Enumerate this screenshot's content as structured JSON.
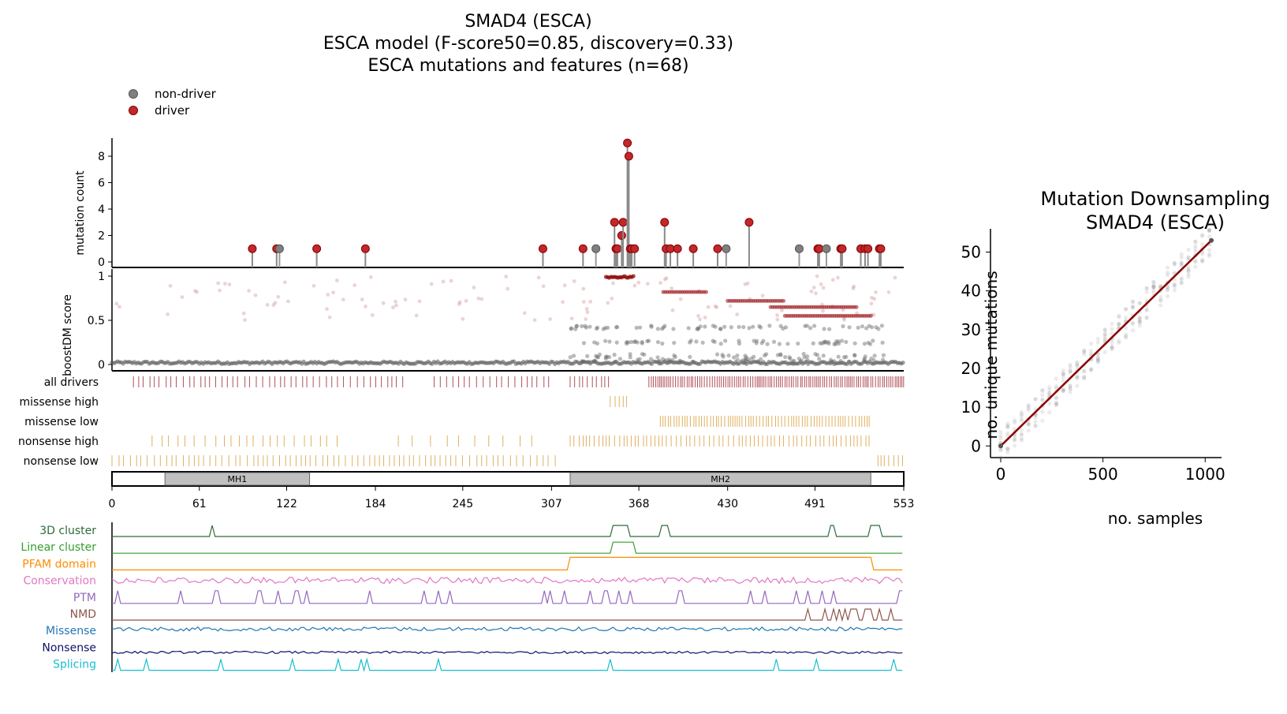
{
  "chart_data": [
    {
      "type": "scatter",
      "title": [
        "SMAD4 (ESCA)",
        "ESCA model (F-score50=0.85, discovery=0.33)",
        "ESCA mutations and features (n=68)"
      ],
      "legend": {
        "position": "top-left",
        "entries": [
          {
            "name": "non-driver",
            "color": "#808080"
          },
          {
            "name": "driver",
            "color": "#c0282c"
          }
        ]
      },
      "x_range": [
        0,
        553
      ],
      "x_ticks": [
        "0",
        "61",
        "122",
        "184",
        "245",
        "307",
        "368",
        "430",
        "491",
        "553"
      ],
      "x_tick_values": [
        0,
        61,
        122,
        184,
        245,
        307,
        368,
        430,
        491,
        553
      ],
      "mutation_count": {
        "ylabel": "mutation count",
        "ylim": [
          0,
          9.5
        ],
        "y_ticks": [
          0,
          2,
          4,
          6,
          8
        ],
        "grid": false,
        "lollipops": [
          {
            "pos": 98,
            "count": 1,
            "driver": true
          },
          {
            "pos": 115,
            "count": 1,
            "driver": true
          },
          {
            "pos": 117,
            "count": 1,
            "driver": false
          },
          {
            "pos": 143,
            "count": 1,
            "driver": true
          },
          {
            "pos": 177,
            "count": 1,
            "driver": true
          },
          {
            "pos": 301,
            "count": 1,
            "driver": true
          },
          {
            "pos": 329,
            "count": 1,
            "driver": true
          },
          {
            "pos": 338,
            "count": 1,
            "driver": false
          },
          {
            "pos": 351,
            "count": 3,
            "driver": true
          },
          {
            "pos": 352,
            "count": 1,
            "driver": true
          },
          {
            "pos": 353,
            "count": 1,
            "driver": true
          },
          {
            "pos": 356,
            "count": 2,
            "driver": true
          },
          {
            "pos": 357,
            "count": 3,
            "driver": true
          },
          {
            "pos": 360,
            "count": 9,
            "driver": true
          },
          {
            "pos": 361,
            "count": 8,
            "driver": true
          },
          {
            "pos": 362,
            "count": 1,
            "driver": true
          },
          {
            "pos": 363,
            "count": 1,
            "driver": true
          },
          {
            "pos": 365,
            "count": 1,
            "driver": true
          },
          {
            "pos": 386,
            "count": 3,
            "driver": true
          },
          {
            "pos": 387,
            "count": 1,
            "driver": true
          },
          {
            "pos": 390,
            "count": 1,
            "driver": true
          },
          {
            "pos": 395,
            "count": 1,
            "driver": true
          },
          {
            "pos": 406,
            "count": 1,
            "driver": true
          },
          {
            "pos": 423,
            "count": 1,
            "driver": true
          },
          {
            "pos": 429,
            "count": 1,
            "driver": false
          },
          {
            "pos": 445,
            "count": 3,
            "driver": true
          },
          {
            "pos": 480,
            "count": 1,
            "driver": false
          },
          {
            "pos": 493,
            "count": 1,
            "driver": true
          },
          {
            "pos": 494,
            "count": 1,
            "driver": true
          },
          {
            "pos": 499,
            "count": 1,
            "driver": false
          },
          {
            "pos": 509,
            "count": 1,
            "driver": true
          },
          {
            "pos": 510,
            "count": 1,
            "driver": true
          },
          {
            "pos": 523,
            "count": 1,
            "driver": true
          },
          {
            "pos": 526,
            "count": 1,
            "driver": true
          },
          {
            "pos": 528,
            "count": 1,
            "driver": true
          },
          {
            "pos": 536,
            "count": 1,
            "driver": true
          },
          {
            "pos": 537,
            "count": 1,
            "driver": true
          }
        ]
      },
      "boostdm_score": {
        "ylabel": "boostDM score",
        "ylim": [
          -0.05,
          1.05
        ],
        "y_ticks": [
          "0",
          "0.5",
          "1"
        ],
        "y_tick_values": [
          0,
          0.5,
          1
        ],
        "description_levels": {
          "baseline_non_driver": 0.0,
          "mid_non_driver": [
            0.25,
            0.42
          ],
          "driver_bands": [
            0.55,
            0.82,
            0.72,
            0.65,
            0.48
          ]
        }
      },
      "driver_tracks": {
        "labels": [
          "all drivers",
          "missense high",
          "missense low",
          "nonsense high",
          "nonsense low"
        ],
        "colors": {
          "all drivers": "#b05058",
          "other": "#e0b060"
        }
      },
      "domains": [
        {
          "name": "MH1",
          "start": 37,
          "end": 138
        },
        {
          "name": "MH2",
          "start": 320,
          "end": 530
        }
      ],
      "feature_tracks": [
        {
          "label": "3D cluster",
          "color": "#2e6b3a"
        },
        {
          "label": "Linear cluster",
          "color": "#33a02c"
        },
        {
          "label": "PFAM domain",
          "color": "#ff8c00"
        },
        {
          "label": "Conservation",
          "color": "#e377c2"
        },
        {
          "label": "PTM",
          "color": "#9467bd"
        },
        {
          "label": "NMD",
          "color": "#8c564b"
        },
        {
          "label": "Missense",
          "color": "#1f77b4"
        },
        {
          "label": "Nonsense",
          "color": "#10106a"
        },
        {
          "label": "Splicing",
          "color": "#17becf"
        }
      ]
    },
    {
      "type": "scatter",
      "title": [
        "Mutation Downsampling",
        "SMAD4 (ESCA)"
      ],
      "xlabel": "no. samples",
      "ylabel": "no. unique mutations",
      "xlim": [
        -50,
        1080
      ],
      "ylim": [
        -3,
        56
      ],
      "x_ticks": [
        0,
        500,
        1000
      ],
      "y_ticks": [
        0,
        10,
        20,
        30,
        40,
        50
      ],
      "grid": false,
      "trend_line": {
        "color": "#8b0000",
        "x": [
          0,
          1030
        ],
        "y": [
          0,
          53
        ]
      }
    }
  ]
}
